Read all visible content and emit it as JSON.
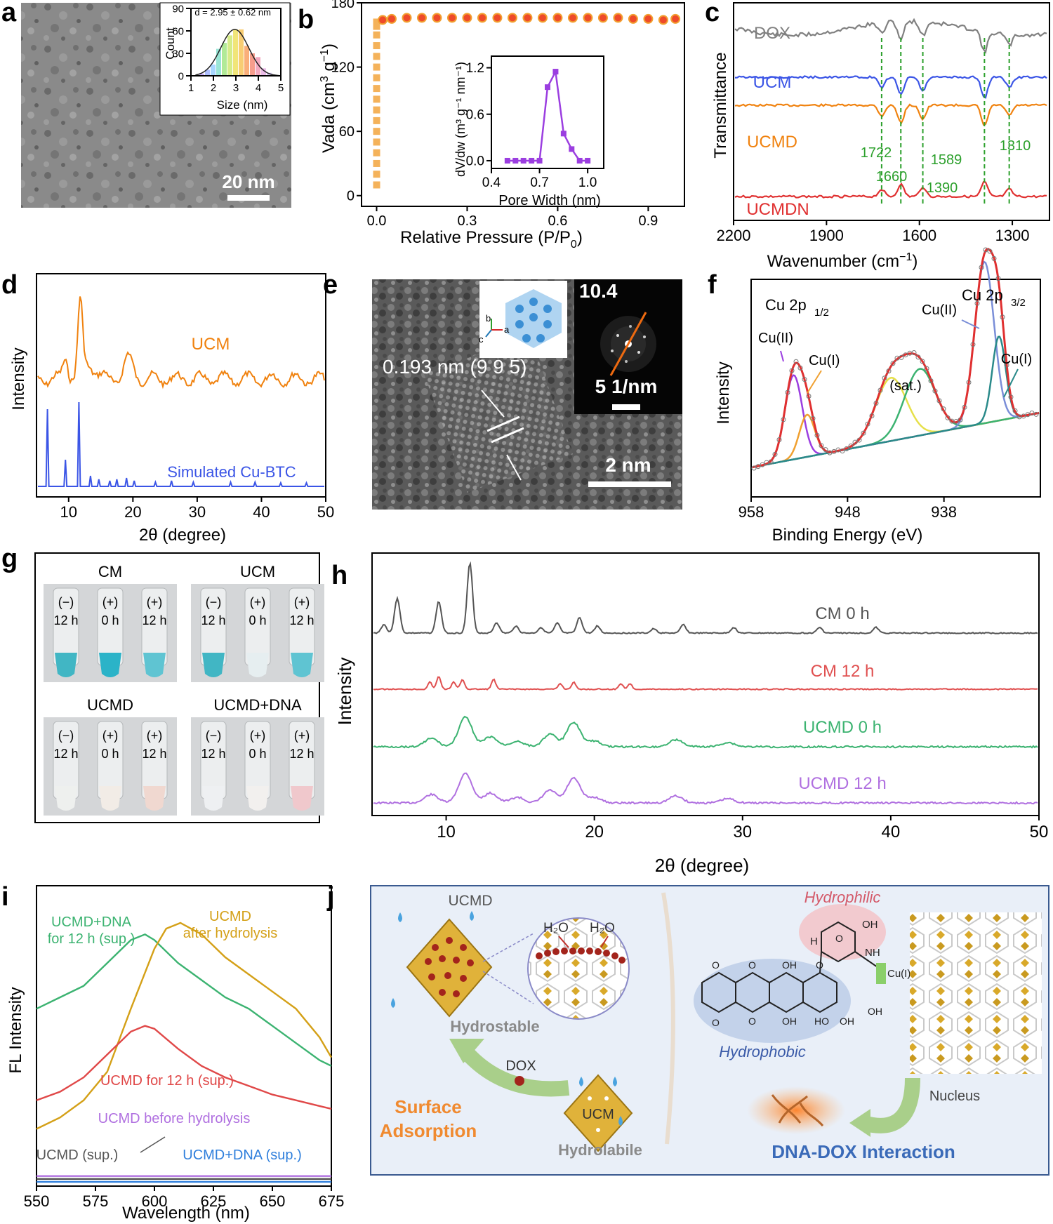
{
  "panel_letters": [
    "a",
    "b",
    "c",
    "d",
    "e",
    "f",
    "g",
    "h",
    "i",
    "j"
  ],
  "colors": {
    "ucm_orange": "#f0820f",
    "sim_blue": "#3b55e6",
    "dox_gray": "#808080",
    "ucm_blue": "#3b55e6",
    "ucmdn_red": "#e03030",
    "ir_green": "#2ca02c",
    "ucmd_green": "#3cb371",
    "ucmd_purple": "#b070e0",
    "hydro_gold": "#d4a017",
    "panel_j_bg": "#e9eff8"
  },
  "panel_a": {
    "scale_bar": "20 nm",
    "inset_annotation": "d = 2.95 ± 0.62 nm",
    "inset_xlabel": "Size (nm)",
    "inset_ylabel": "Count"
  },
  "panel_e": {
    "lattice_label": "0.193 nm (9 9 5)",
    "scale_bar": "2 nm",
    "fft_label": "10.4",
    "fft_scale": "5 1/nm",
    "axis_labels": [
      "b",
      "a",
      "c"
    ]
  },
  "panel_g": {
    "groups": [
      {
        "title": "CM",
        "tubes": [
          {
            "sign": "(−)",
            "time": "12 h",
            "liquid": "#41b6c4"
          },
          {
            "sign": "(+)",
            "time": "0 h",
            "liquid": "#2bb3c8"
          },
          {
            "sign": "(+)",
            "time": "12 h",
            "liquid": "#5fc4d2"
          }
        ]
      },
      {
        "title": "UCM",
        "tubes": [
          {
            "sign": "(−)",
            "time": "12 h",
            "liquid": "#41b6c4"
          },
          {
            "sign": "(+)",
            "time": "0 h",
            "liquid": "#e6eef0"
          },
          {
            "sign": "(+)",
            "time": "12 h",
            "liquid": "#5fc4d2"
          }
        ]
      },
      {
        "title": "UCMD",
        "tubes": [
          {
            "sign": "(−)",
            "time": "12 h",
            "liquid": "#eef0ee"
          },
          {
            "sign": "(+)",
            "time": "0 h",
            "liquid": "#f2ece6"
          },
          {
            "sign": "(+)",
            "time": "12 h",
            "liquid": "#f0d8d0"
          }
        ]
      },
      {
        "title": "UCMD+DNA",
        "tubes": [
          {
            "sign": "(−)",
            "time": "12 h",
            "liquid": "#eef0f2"
          },
          {
            "sign": "(+)",
            "time": "0 h",
            "liquid": "#f2f0ee"
          },
          {
            "sign": "(+)",
            "time": "12 h",
            "liquid": "#f0c8cc"
          }
        ]
      }
    ]
  },
  "panel_j": {
    "ucmd": "UCMD",
    "h2o_1": "H₂O",
    "h2o_2": "H₂O",
    "hydrostable": "Hydrostable",
    "dox": "DOX",
    "ucm": "UCM",
    "hydrolabile": "Hydrolabile",
    "surface_adsorption_1": "Surface",
    "surface_adsorption_2": "Adsorption",
    "hydrophilic": "Hydrophilic",
    "hydrophobic": "Hydrophobic",
    "cu_i": "Cu(I)",
    "nucleus": "Nucleus",
    "dna_dox": "DNA-DOX Interaction",
    "mol_labels": [
      "OH",
      "H",
      "NH",
      "O",
      "O",
      "OH",
      "O",
      "OH",
      "OH",
      "O",
      "HO",
      "OH",
      "O",
      "O"
    ]
  },
  "chart_data": [
    {
      "id": "a-inset",
      "type": "bar",
      "xlabel": "Size (nm)",
      "ylabel": "Count",
      "xlim": [
        1,
        5
      ],
      "ylim": [
        0,
        90
      ],
      "xticks": [
        1,
        2,
        3,
        4,
        5
      ],
      "yticks": [
        0,
        30,
        60,
        90
      ],
      "annotation": "d = 2.95 ± 0.62 nm",
      "bins": [
        1.5,
        1.75,
        2.0,
        2.25,
        2.5,
        2.75,
        3.0,
        3.25,
        3.5,
        3.75,
        4.0,
        4.25,
        4.5
      ],
      "values": [
        3,
        8,
        15,
        36,
        44,
        54,
        62,
        62,
        40,
        30,
        25,
        10,
        4
      ],
      "fit_mean": 2.95,
      "fit_sd": 0.62,
      "fit_peak": 62
    },
    {
      "id": "b",
      "type": "scatter",
      "xlabel": "Relative Pressure (P/P",
      "xlabel_sub": "0",
      "xlabel_tail": ")",
      "ylabel": "Vada (cm",
      "ylabel_sup": "3",
      "ylabel_mid": " g",
      "ylabel_sup2": "−1",
      "ylabel_tail": ")",
      "xlim": [
        -0.05,
        1.02
      ],
      "ylim": [
        -10,
        180
      ],
      "xticks": [
        0.0,
        0.3,
        0.6,
        0.9
      ],
      "yticks": [
        0,
        60,
        120,
        180
      ],
      "series": [
        {
          "name": "adsorption",
          "x": [
            0.0,
            0.0,
            0.0,
            0.0,
            0.0,
            0.0,
            0.0,
            0.0,
            0.0,
            0.0,
            0.0,
            0.0,
            0.0,
            0.0,
            0.0,
            0.0,
            0.0
          ],
          "y": [
            10,
            20,
            30,
            40,
            50,
            60,
            70,
            80,
            90,
            100,
            110,
            120,
            130,
            140,
            150,
            158,
            162
          ]
        },
        {
          "name": "plateau",
          "x": [
            0.02,
            0.05,
            0.1,
            0.15,
            0.2,
            0.25,
            0.3,
            0.35,
            0.4,
            0.45,
            0.5,
            0.55,
            0.6,
            0.65,
            0.7,
            0.75,
            0.8,
            0.85,
            0.9,
            0.95,
            0.99
          ],
          "y": [
            164,
            165,
            166,
            166,
            166,
            166,
            166,
            166,
            166,
            166,
            166,
            166,
            166,
            166,
            166,
            166,
            166,
            165,
            165,
            164,
            165
          ]
        }
      ]
    },
    {
      "id": "b-inset",
      "type": "line",
      "xlabel": "Pore Width (nm)",
      "ylabel": "dV/dw (m³ g⁻¹ nm⁻¹)",
      "xlim": [
        0.4,
        1.1
      ],
      "ylim": [
        -0.1,
        1.35
      ],
      "xticks": [
        0.4,
        0.7,
        1.0
      ],
      "yticks": [
        0.0,
        0.6,
        1.2
      ],
      "x": [
        0.5,
        0.55,
        0.6,
        0.65,
        0.7,
        0.75,
        0.8,
        0.85,
        0.9,
        0.95,
        1.0
      ],
      "y": [
        0.0,
        0.0,
        0.0,
        0.0,
        0.0,
        0.95,
        1.15,
        0.35,
        0.15,
        0.0,
        0.0
      ]
    },
    {
      "id": "c",
      "type": "line",
      "xlabel": "Wavenumber (cm",
      "xlabel_sup": "−1",
      "xlabel_tail": ")",
      "ylabel": "Transmittance",
      "xlim": [
        2200,
        1180
      ],
      "xticks": [
        2200,
        1900,
        1600,
        1300
      ],
      "series": [
        {
          "name": "DOX"
        },
        {
          "name": "UCM"
        },
        {
          "name": "UCMD"
        },
        {
          "name": "UCMDN"
        }
      ],
      "marker_lines": [
        1722,
        1660,
        1589,
        1390,
        1310
      ],
      "marker_labels": [
        "1722",
        "1660",
        "1589",
        "1390",
        "1310"
      ]
    },
    {
      "id": "d",
      "type": "line",
      "xlabel": "2θ (degree)",
      "ylabel": "Intensity",
      "xlim": [
        5,
        50
      ],
      "xticks": [
        10,
        20,
        30,
        40,
        50
      ],
      "series": [
        {
          "name": "UCM"
        },
        {
          "name": "Simulated Cu-BTC"
        }
      ]
    },
    {
      "id": "f",
      "type": "line",
      "xlabel": "Binding Energy (eV)",
      "ylabel": "Intensity",
      "xlim": [
        958,
        928
      ],
      "xticks": [
        958,
        948,
        938
      ],
      "annotations": [
        "Cu 2p",
        "1/2",
        "Cu 2p",
        "3/2",
        "Cu(II)",
        "Cu(I)",
        "(sat.)",
        "Cu(II)",
        "Cu(I)"
      ]
    },
    {
      "id": "h",
      "type": "line",
      "xlabel": "2θ (degree)",
      "ylabel": "Intensity",
      "xlim": [
        5,
        50
      ],
      "xticks": [
        10,
        20,
        30,
        40,
        50
      ],
      "series": [
        {
          "name": "CM 0 h"
        },
        {
          "name": "CM 12 h"
        },
        {
          "name": "UCMD 0 h"
        },
        {
          "name": "UCMD 12 h"
        }
      ]
    },
    {
      "id": "i",
      "type": "line",
      "xlabel": "Wavelength (nm)",
      "ylabel": "FL Intensity",
      "xlim": [
        550,
        675
      ],
      "xticks": [
        550,
        575,
        600,
        625,
        650,
        675
      ],
      "labels": {
        "green": [
          "UCMD+DNA",
          "for 12 h (sup.)"
        ],
        "gold": [
          "UCMD",
          "after hydrolysis"
        ],
        "red": "UCMD for 12 h (sup.)",
        "purple": "UCMD before hydrolysis",
        "gray": "UCMD (sup.)",
        "blue": "UCMD+DNA (sup.)"
      },
      "series": [
        {
          "name": "UCMD+DNA for 12 h (sup.)",
          "x": [
            550,
            560,
            570,
            580,
            590,
            596,
            600,
            610,
            620,
            630,
            640,
            650,
            660,
            670,
            675
          ],
          "y": [
            0.62,
            0.66,
            0.7,
            0.78,
            0.86,
            0.88,
            0.86,
            0.78,
            0.72,
            0.66,
            0.62,
            0.56,
            0.5,
            0.44,
            0.42
          ]
        },
        {
          "name": "UCMD after hydrolysis",
          "x": [
            550,
            560,
            570,
            580,
            590,
            600,
            605,
            611,
            620,
            630,
            640,
            650,
            660,
            670,
            675
          ],
          "y": [
            0.2,
            0.24,
            0.3,
            0.4,
            0.62,
            0.83,
            0.9,
            0.92,
            0.88,
            0.8,
            0.74,
            0.68,
            0.62,
            0.52,
            0.45
          ]
        },
        {
          "name": "UCMD for 12 h (sup.)",
          "x": [
            550,
            560,
            570,
            580,
            590,
            596,
            600,
            610,
            620,
            630,
            640,
            650,
            660,
            670,
            675
          ],
          "y": [
            0.3,
            0.33,
            0.38,
            0.46,
            0.54,
            0.56,
            0.55,
            0.48,
            0.42,
            0.38,
            0.35,
            0.32,
            0.3,
            0.28,
            0.27
          ]
        },
        {
          "name": "UCMD before hydrolysis",
          "x": [
            550,
            675
          ],
          "y": [
            0.035,
            0.035
          ]
        },
        {
          "name": "UCMD (sup.)",
          "x": [
            550,
            675
          ],
          "y": [
            0.025,
            0.025
          ]
        },
        {
          "name": "UCMD+DNA (sup.)",
          "x": [
            550,
            675
          ],
          "y": [
            0.015,
            0.015
          ]
        }
      ]
    }
  ]
}
